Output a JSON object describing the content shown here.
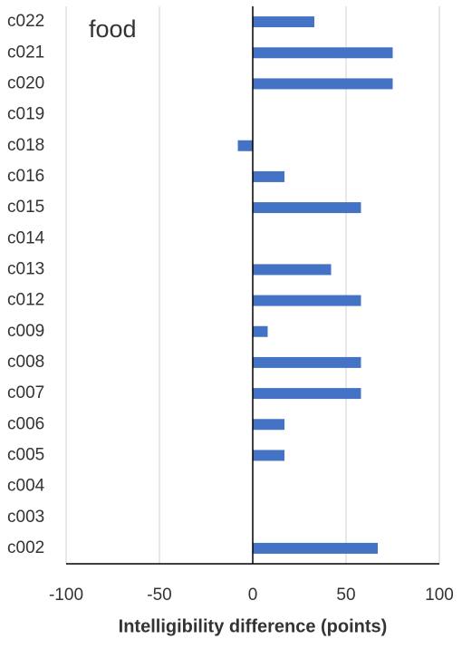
{
  "chart_data": {
    "type": "barh",
    "annotation": "food",
    "x_label": "Intelligibility difference (points)",
    "categories": [
      "c022",
      "c021",
      "c020",
      "c019",
      "c018",
      "c016",
      "c015",
      "c014",
      "c013",
      "c012",
      "c009",
      "c008",
      "c007",
      "c006",
      "c005",
      "c004",
      "c003",
      "c002"
    ],
    "values": [
      33,
      75,
      75,
      0,
      -8,
      17,
      58,
      0,
      42,
      58,
      8,
      58,
      58,
      17,
      17,
      0,
      0,
      67
    ],
    "color": "#4472c4",
    "xlim": [
      -100,
      100
    ],
    "xticks": [
      -100,
      -50,
      0,
      50,
      100
    ],
    "grid": true
  }
}
